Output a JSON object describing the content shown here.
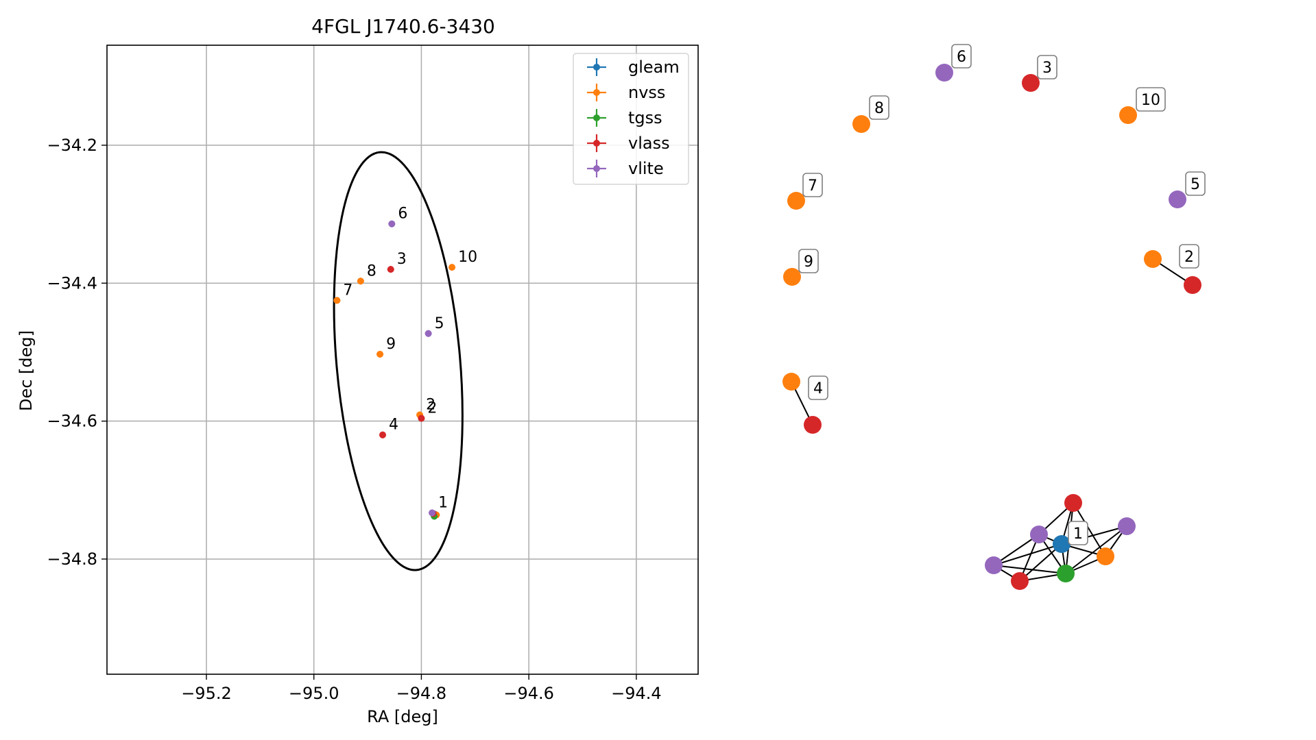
{
  "chart_data": [
    {
      "type": "scatter",
      "title": "4FGL J1740.6-3430",
      "xlabel": "RA [deg]",
      "ylabel": "Dec [deg]",
      "xlim": [
        -95.385,
        -94.285
      ],
      "ylim": [
        -34.967,
        -34.055
      ],
      "xticks": [
        -95.2,
        -95.0,
        -94.8,
        -94.6,
        -94.4
      ],
      "xtick_labels": [
        "−95.2",
        "−95.0",
        "−94.8",
        "−94.6",
        "−94.4"
      ],
      "yticks": [
        -34.2,
        -34.4,
        -34.6,
        -34.8
      ],
      "ytick_labels": [
        "−34.2",
        "−34.4",
        "−34.6",
        "−34.8"
      ],
      "grid": true,
      "legend_position": "top-right",
      "series": [
        {
          "name": "gleam",
          "color": "#1f77b4",
          "points": [
            {
              "x": -94.775,
              "y": -34.735,
              "label": ""
            }
          ]
        },
        {
          "name": "nvss",
          "color": "#ff7f0e",
          "points": [
            {
              "x": -94.803,
              "y": -34.591,
              "label": "2"
            },
            {
              "x": -94.957,
              "y": -34.425,
              "label": "7"
            },
            {
              "x": -94.913,
              "y": -34.397,
              "label": "8"
            },
            {
              "x": -94.877,
              "y": -34.503,
              "label": "9"
            },
            {
              "x": -94.743,
              "y": -34.377,
              "label": "10"
            },
            {
              "x": -94.772,
              "y": -34.736,
              "label": ""
            }
          ]
        },
        {
          "name": "tgss",
          "color": "#2ca02c",
          "points": [
            {
              "x": -94.776,
              "y": -34.738,
              "label": ""
            }
          ]
        },
        {
          "name": "vlass",
          "color": "#d62728",
          "points": [
            {
              "x": -94.857,
              "y": -34.38,
              "label": "3"
            },
            {
              "x": -94.872,
              "y": -34.62,
              "label": "4"
            },
            {
              "x": -94.8,
              "y": -34.596,
              "label": "2"
            },
            {
              "x": -94.778,
              "y": -34.734,
              "label": ""
            }
          ]
        },
        {
          "name": "vlite",
          "color": "#9467bd",
          "points": [
            {
              "x": -94.855,
              "y": -34.314,
              "label": "6"
            },
            {
              "x": -94.787,
              "y": -34.473,
              "label": "5"
            },
            {
              "x": -94.78,
              "y": -34.733,
              "label": "1"
            }
          ]
        }
      ],
      "ellipse": {
        "center_x": -94.843,
        "center_y": -34.513,
        "half_width_ra": 0.115,
        "half_height_dec": 0.304,
        "tilt_deg": -5
      }
    },
    {
      "type": "network",
      "nodes": [
        {
          "id": "1-gleam",
          "color": "#1f77b4",
          "label": "1"
        },
        {
          "id": "1-nvss",
          "color": "#ff7f0e",
          "label": ""
        },
        {
          "id": "1-tgss",
          "color": "#2ca02c",
          "label": ""
        },
        {
          "id": "1-vlass-a",
          "color": "#d62728",
          "label": ""
        },
        {
          "id": "1-vlass-b",
          "color": "#d62728",
          "label": ""
        },
        {
          "id": "1-vlite-a",
          "color": "#9467bd",
          "label": ""
        },
        {
          "id": "1-vlite-b",
          "color": "#9467bd",
          "label": ""
        },
        {
          "id": "1-vlite-c",
          "color": "#9467bd",
          "label": ""
        },
        {
          "id": "2-nvss",
          "color": "#ff7f0e",
          "label": "2"
        },
        {
          "id": "2-vlass",
          "color": "#d62728",
          "label": ""
        },
        {
          "id": "3-vlass",
          "color": "#d62728",
          "label": "3"
        },
        {
          "id": "4-nvss",
          "color": "#ff7f0e",
          "label": "4"
        },
        {
          "id": "4-vlass",
          "color": "#d62728",
          "label": ""
        },
        {
          "id": "5-vlite",
          "color": "#9467bd",
          "label": "5"
        },
        {
          "id": "6-vlite",
          "color": "#9467bd",
          "label": "6"
        },
        {
          "id": "7-nvss",
          "color": "#ff7f0e",
          "label": "7"
        },
        {
          "id": "8-nvss",
          "color": "#ff7f0e",
          "label": "8"
        },
        {
          "id": "9-nvss",
          "color": "#ff7f0e",
          "label": "9"
        },
        {
          "id": "10-nvss",
          "color": "#ff7f0e",
          "label": "10"
        }
      ],
      "edges": [
        [
          "1-gleam",
          "1-vlass-a"
        ],
        [
          "1-gleam",
          "1-vlite-b"
        ],
        [
          "1-gleam",
          "1-nvss"
        ],
        [
          "1-gleam",
          "1-tgss"
        ],
        [
          "1-gleam",
          "1-vlite-c"
        ],
        [
          "1-gleam",
          "1-vlite-a"
        ],
        [
          "1-gleam",
          "1-vlass-b"
        ],
        [
          "1-vlite-a",
          "1-vlass-a"
        ],
        [
          "1-vlite-a",
          "1-tgss"
        ],
        [
          "1-vlite-a",
          "1-vlass-b"
        ],
        [
          "1-vlite-a",
          "1-vlite-b"
        ],
        [
          "1-vlite-b",
          "1-vlass-b"
        ],
        [
          "1-vlite-b",
          "1-tgss"
        ],
        [
          "1-vlass-b",
          "1-tgss"
        ],
        [
          "1-tgss",
          "1-vlite-c"
        ],
        [
          "1-tgss",
          "1-nvss"
        ],
        [
          "1-tgss",
          "1-vlass-a"
        ],
        [
          "1-nvss",
          "1-vlite-c"
        ],
        [
          "1-nvss",
          "1-vlass-a"
        ],
        [
          "2-nvss",
          "2-vlass"
        ],
        [
          "4-nvss",
          "4-vlass"
        ]
      ]
    }
  ]
}
